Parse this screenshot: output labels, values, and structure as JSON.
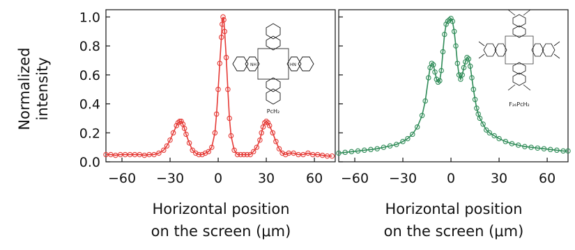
{
  "chart_data": {
    "ylabel_lines": [
      "Normalized",
      "intensity"
    ],
    "panels": [
      {
        "type": "scatter",
        "xlabel_lines": [
          "Horizontal position",
          "on the screen (μm)"
        ],
        "molecule_label": "PcH₂",
        "color": "#e53935",
        "xlim": [
          -70,
          73
        ],
        "ylim": [
          0,
          1.05
        ],
        "xticks": [
          "−60",
          "−30",
          "0",
          "30",
          "60"
        ],
        "xtick_values": [
          -60,
          -30,
          0,
          30,
          60
        ],
        "yticks": [
          "0.0",
          "0.2",
          "0.4",
          "0.6",
          "0.8",
          "1.0"
        ],
        "ytick_values": [
          0.0,
          0.2,
          0.4,
          0.6,
          0.8,
          1.0
        ],
        "series": [
          {
            "x": [
              -70,
              -67,
              -64,
              -61,
              -58,
              -55,
              -52,
              -49,
              -46,
              -43,
              -40,
              -37,
              -34,
              -32,
              -30,
              -28,
              -26,
              -25,
              -24,
              -23,
              -22,
              -21,
              -20,
              -18,
              -16,
              -14,
              -12,
              -10,
              -8,
              -6,
              -4,
              -2,
              -1,
              0,
              1,
              2,
              2.5,
              3,
              3.5,
              4,
              5,
              6,
              7,
              8,
              10,
              12,
              14,
              16,
              18,
              20,
              22,
              24,
              26,
              27,
              28,
              29,
              30,
              31,
              32,
              34,
              36,
              38,
              40,
              42,
              44,
              47,
              50,
              53,
              56,
              59,
              62,
              65,
              68,
              71
            ],
            "y": [
              0.05,
              0.05,
              0.045,
              0.05,
              0.05,
              0.05,
              0.05,
              0.05,
              0.045,
              0.05,
              0.05,
              0.06,
              0.08,
              0.11,
              0.15,
              0.2,
              0.25,
              0.27,
              0.28,
              0.28,
              0.26,
              0.23,
              0.19,
              0.13,
              0.08,
              0.06,
              0.05,
              0.05,
              0.06,
              0.07,
              0.1,
              0.2,
              0.33,
              0.5,
              0.68,
              0.86,
              0.95,
              1.0,
              0.98,
              0.9,
              0.72,
              0.5,
              0.3,
              0.18,
              0.08,
              0.05,
              0.05,
              0.05,
              0.05,
              0.05,
              0.07,
              0.1,
              0.15,
              0.2,
              0.24,
              0.27,
              0.28,
              0.27,
              0.25,
              0.2,
              0.14,
              0.09,
              0.06,
              0.05,
              0.06,
              0.06,
              0.05,
              0.05,
              0.06,
              0.05,
              0.05,
              0.045,
              0.04,
              0.04
            ]
          }
        ]
      },
      {
        "type": "scatter",
        "xlabel_lines": [
          "Horizontal position",
          "on the screen (μm)"
        ],
        "molecule_label": "F₂₆PcH₂",
        "color": "#2e8b57",
        "xlim": [
          -70,
          73
        ],
        "ylim": [
          0,
          1.05
        ],
        "xticks": [
          "−60",
          "−30",
          "0",
          "30",
          "60"
        ],
        "xtick_values": [
          -60,
          -30,
          0,
          30,
          60
        ],
        "yticks": [
          "0.0",
          "0.2",
          "0.4",
          "0.6",
          "0.8",
          "1.0"
        ],
        "ytick_values": [
          0.0,
          0.2,
          0.4,
          0.6,
          0.8,
          1.0
        ],
        "series": [
          {
            "x": [
              -70,
              -66,
              -62,
              -58,
              -54,
              -50,
              -46,
              -42,
              -38,
              -34,
              -30,
              -27,
              -24,
              -21,
              -18,
              -16,
              -14,
              -13,
              -12,
              -11,
              -10,
              -9,
              -8,
              -7,
              -6,
              -5,
              -4,
              -3,
              -2,
              -1,
              0,
              1,
              2,
              3,
              4,
              5,
              6,
              7,
              8,
              9,
              10,
              11,
              12,
              13,
              14,
              15,
              16,
              17,
              18,
              20,
              22,
              24,
              27,
              30,
              34,
              38,
              42,
              46,
              50,
              54,
              58,
              62,
              66,
              70,
              73
            ],
            "y": [
              0.06,
              0.065,
              0.07,
              0.075,
              0.08,
              0.085,
              0.09,
              0.1,
              0.11,
              0.12,
              0.14,
              0.16,
              0.19,
              0.24,
              0.32,
              0.42,
              0.58,
              0.65,
              0.68,
              0.67,
              0.62,
              0.57,
              0.55,
              0.56,
              0.63,
              0.76,
              0.88,
              0.95,
              0.97,
              0.98,
              0.99,
              0.97,
              0.9,
              0.8,
              0.68,
              0.6,
              0.57,
              0.6,
              0.65,
              0.69,
              0.72,
              0.71,
              0.66,
              0.58,
              0.5,
              0.43,
              0.37,
              0.33,
              0.3,
              0.26,
              0.22,
              0.2,
              0.18,
              0.16,
              0.14,
              0.125,
              0.115,
              0.105,
              0.1,
              0.095,
              0.09,
              0.085,
              0.08,
              0.075,
              0.075
            ]
          }
        ]
      }
    ]
  }
}
